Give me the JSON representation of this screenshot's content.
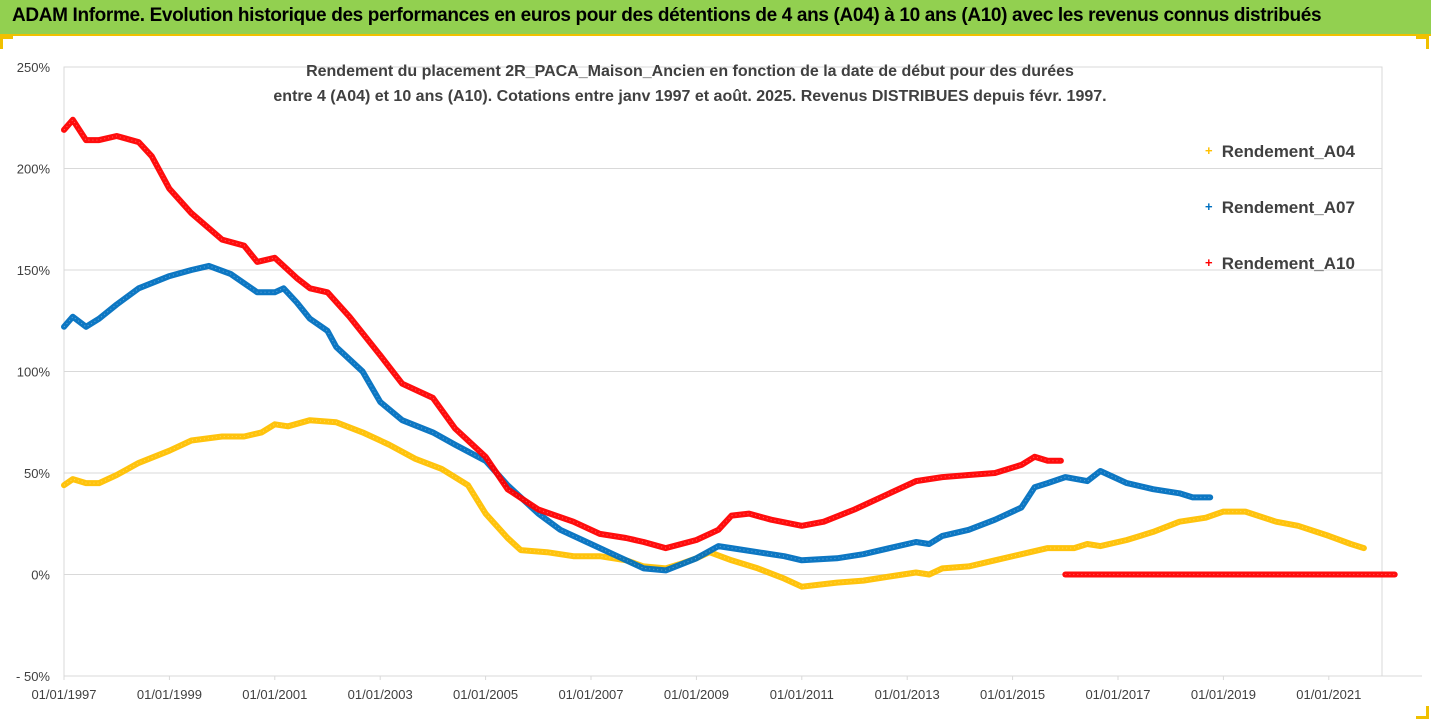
{
  "banner": {
    "text": "ADAM Informe. Evolution historique des performances en euros pour des détentions de 4 ans (A04) à 10 ans (A10) avec les revenus connus distribués"
  },
  "chart_data": {
    "type": "line",
    "title_line1": "Rendement du placement 2R_PACA_Maison_Ancien en fonction de la date de début pour des durées",
    "title_line2": "entre 4 (A04) et 10 ans (A10). Cotations entre janv 1997 et août. 2025. Revenus DISTRIBUES depuis févr. 1997.",
    "xlabel": "",
    "ylabel": "",
    "x_range": [
      "1997-01",
      "2022-04"
    ],
    "ylim": [
      -50,
      250
    ],
    "y_ticks": [
      -50,
      0,
      50,
      100,
      150,
      200,
      250
    ],
    "y_tick_labels": [
      "- 50%",
      "0%",
      "50%",
      "100%",
      "150%",
      "200%",
      "250%"
    ],
    "x_tick_labels": [
      "01/01/1997",
      "01/01/1999",
      "01/01/2001",
      "01/01/2003",
      "01/01/2005",
      "01/01/2007",
      "01/01/2009",
      "01/01/2011",
      "01/01/2013",
      "01/01/2015",
      "01/01/2017",
      "01/01/2019",
      "01/01/2021"
    ],
    "grid": "horizontal",
    "legend_position": "right",
    "colors": {
      "A04": "#ffc000",
      "A07": "#0070c0",
      "A10": "#ff0000",
      "grid": "#d9d9d9",
      "axis_text": "#404040"
    },
    "series": [
      {
        "name": "Rendement_A04",
        "color": "#ffc000",
        "points": [
          [
            "1997-01",
            44
          ],
          [
            "1997-03",
            47
          ],
          [
            "1997-06",
            45
          ],
          [
            "1997-09",
            45
          ],
          [
            "1998-01",
            49
          ],
          [
            "1998-06",
            55
          ],
          [
            "1999-01",
            61
          ],
          [
            "1999-06",
            66
          ],
          [
            "2000-01",
            68
          ],
          [
            "2000-06",
            68
          ],
          [
            "2000-10",
            70
          ],
          [
            "2001-01",
            74
          ],
          [
            "2001-04",
            73
          ],
          [
            "2001-09",
            76
          ],
          [
            "2002-03",
            75
          ],
          [
            "2002-09",
            70
          ],
          [
            "2003-03",
            64
          ],
          [
            "2003-09",
            57
          ],
          [
            "2004-03",
            52
          ],
          [
            "2004-09",
            44
          ],
          [
            "2005-01",
            30
          ],
          [
            "2005-06",
            18
          ],
          [
            "2005-09",
            12
          ],
          [
            "2006-03",
            11
          ],
          [
            "2006-09",
            9
          ],
          [
            "2007-03",
            9
          ],
          [
            "2007-09",
            7
          ],
          [
            "2008-01",
            4
          ],
          [
            "2008-06",
            3
          ],
          [
            "2008-09",
            5
          ],
          [
            "2009-01",
            8
          ],
          [
            "2009-04",
            11
          ],
          [
            "2009-09",
            7
          ],
          [
            "2010-03",
            3
          ],
          [
            "2010-09",
            -2
          ],
          [
            "2011-01",
            -6
          ],
          [
            "2011-09",
            -4
          ],
          [
            "2012-03",
            -3
          ],
          [
            "2012-09",
            -1
          ],
          [
            "2013-03",
            1
          ],
          [
            "2013-06",
            0
          ],
          [
            "2013-09",
            3
          ],
          [
            "2014-03",
            4
          ],
          [
            "2014-09",
            7
          ],
          [
            "2015-03",
            10
          ],
          [
            "2015-09",
            13
          ],
          [
            "2016-03",
            13
          ],
          [
            "2016-06",
            15
          ],
          [
            "2016-09",
            14
          ],
          [
            "2017-03",
            17
          ],
          [
            "2017-09",
            21
          ],
          [
            "2018-03",
            26
          ],
          [
            "2018-09",
            28
          ],
          [
            "2019-01",
            31
          ],
          [
            "2019-06",
            31
          ],
          [
            "2020-01",
            26
          ],
          [
            "2020-06",
            24
          ],
          [
            "2021-01",
            19
          ],
          [
            "2021-06",
            15
          ],
          [
            "2021-09",
            13
          ]
        ]
      },
      {
        "name": "Rendement_A07",
        "color": "#0070c0",
        "points": [
          [
            "1997-01",
            122
          ],
          [
            "1997-03",
            127
          ],
          [
            "1997-06",
            122
          ],
          [
            "1997-09",
            126
          ],
          [
            "1998-01",
            133
          ],
          [
            "1998-06",
            141
          ],
          [
            "1999-01",
            147
          ],
          [
            "1999-06",
            150
          ],
          [
            "1999-10",
            152
          ],
          [
            "2000-03",
            148
          ],
          [
            "2000-09",
            139
          ],
          [
            "2001-01",
            139
          ],
          [
            "2001-03",
            141
          ],
          [
            "2001-06",
            134
          ],
          [
            "2001-09",
            126
          ],
          [
            "2002-01",
            120
          ],
          [
            "2002-03",
            112
          ],
          [
            "2002-09",
            100
          ],
          [
            "2003-01",
            85
          ],
          [
            "2003-06",
            76
          ],
          [
            "2004-01",
            70
          ],
          [
            "2004-06",
            64
          ],
          [
            "2005-01",
            56
          ],
          [
            "2005-06",
            44
          ],
          [
            "2006-01",
            30
          ],
          [
            "2006-06",
            22
          ],
          [
            "2007-01",
            15
          ],
          [
            "2007-06",
            10
          ],
          [
            "2008-01",
            3
          ],
          [
            "2008-06",
            2
          ],
          [
            "2009-01",
            8
          ],
          [
            "2009-06",
            14
          ],
          [
            "2009-09",
            13
          ],
          [
            "2010-03",
            11
          ],
          [
            "2010-09",
            9
          ],
          [
            "2011-01",
            7
          ],
          [
            "2011-09",
            8
          ],
          [
            "2012-03",
            10
          ],
          [
            "2012-09",
            13
          ],
          [
            "2013-03",
            16
          ],
          [
            "2013-06",
            15
          ],
          [
            "2013-09",
            19
          ],
          [
            "2014-03",
            22
          ],
          [
            "2014-09",
            27
          ],
          [
            "2015-03",
            33
          ],
          [
            "2015-06",
            43
          ],
          [
            "2015-09",
            45
          ],
          [
            "2016-01",
            48
          ],
          [
            "2016-06",
            46
          ],
          [
            "2016-09",
            51
          ],
          [
            "2017-03",
            45
          ],
          [
            "2017-09",
            42
          ],
          [
            "2018-03",
            40
          ],
          [
            "2018-06",
            38
          ],
          [
            "2018-10",
            38
          ]
        ]
      },
      {
        "name": "Rendement_A10",
        "color": "#ff0000",
        "points": [
          [
            "1997-01",
            219
          ],
          [
            "1997-03",
            224
          ],
          [
            "1997-06",
            214
          ],
          [
            "1997-09",
            214
          ],
          [
            "1998-01",
            216
          ],
          [
            "1998-06",
            213
          ],
          [
            "1998-09",
            206
          ],
          [
            "1999-01",
            190
          ],
          [
            "1999-06",
            178
          ],
          [
            "2000-01",
            165
          ],
          [
            "2000-06",
            162
          ],
          [
            "2000-09",
            154
          ],
          [
            "2001-01",
            156
          ],
          [
            "2001-06",
            146
          ],
          [
            "2001-09",
            141
          ],
          [
            "2002-01",
            139
          ],
          [
            "2002-06",
            127
          ],
          [
            "2003-01",
            108
          ],
          [
            "2003-06",
            94
          ],
          [
            "2004-01",
            87
          ],
          [
            "2004-06",
            72
          ],
          [
            "2005-01",
            58
          ],
          [
            "2005-06",
            42
          ],
          [
            "2006-01",
            32
          ],
          [
            "2006-09",
            26
          ],
          [
            "2007-03",
            20
          ],
          [
            "2007-09",
            18
          ],
          [
            "2008-01",
            16
          ],
          [
            "2008-06",
            13
          ],
          [
            "2009-01",
            17
          ],
          [
            "2009-06",
            22
          ],
          [
            "2009-09",
            29
          ],
          [
            "2010-01",
            30
          ],
          [
            "2010-06",
            27
          ],
          [
            "2011-01",
            24
          ],
          [
            "2011-06",
            26
          ],
          [
            "2012-01",
            32
          ],
          [
            "2012-09",
            40
          ],
          [
            "2013-03",
            46
          ],
          [
            "2013-09",
            48
          ],
          [
            "2014-03",
            49
          ],
          [
            "2014-09",
            50
          ],
          [
            "2015-03",
            54
          ],
          [
            "2015-06",
            58
          ],
          [
            "2015-09",
            56
          ],
          [
            "2015-12",
            56
          ]
        ]
      },
      {
        "name": "Rendement_A10",
        "color": "#ff0000",
        "points": [
          [
            "2016-01",
            0
          ],
          [
            "2022-04",
            0
          ]
        ]
      }
    ]
  }
}
